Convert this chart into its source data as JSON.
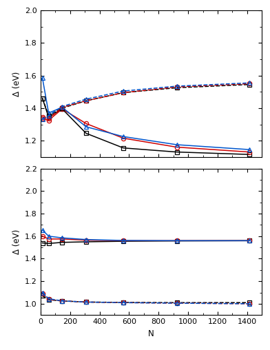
{
  "top_panel": {
    "ylim": [
      1.1,
      2.0
    ],
    "yticks": [
      1.2,
      1.4,
      1.6,
      1.8,
      2.0
    ],
    "N_values": [
      13,
      55,
      147,
      309,
      561,
      923,
      1415
    ],
    "Pd_Ih_solid": [
      1.46,
      1.345,
      1.395,
      1.245,
      1.155,
      1.13,
      1.115
    ],
    "Pd_IDh_solid": [
      1.335,
      1.325,
      1.395,
      1.305,
      1.215,
      1.16,
      1.13
    ],
    "Pd_CO_solid": [
      1.585,
      1.37,
      1.405,
      1.285,
      1.225,
      1.175,
      1.145
    ],
    "Au_Ih_dashed": [
      1.46,
      1.355,
      1.4,
      1.445,
      1.495,
      1.525,
      1.545
    ],
    "Au_IDh_dashed": [
      1.345,
      1.335,
      1.405,
      1.445,
      1.495,
      1.53,
      1.55
    ],
    "Au_CO_dashed": [
      1.33,
      1.355,
      1.41,
      1.455,
      1.505,
      1.535,
      1.555
    ]
  },
  "bottom_panel": {
    "ylim": [
      0.9,
      2.2
    ],
    "yticks": [
      1.0,
      1.2,
      1.4,
      1.6,
      1.8,
      2.0,
      2.2
    ],
    "N_values": [
      13,
      55,
      147,
      309,
      561,
      923,
      1415
    ],
    "Pd_Ih_solid": [
      1.54,
      1.535,
      1.545,
      1.55,
      1.555,
      1.558,
      1.56
    ],
    "Pd_IDh_solid": [
      1.6,
      1.575,
      1.575,
      1.565,
      1.56,
      1.56,
      1.56
    ],
    "Pd_CO_solid": [
      1.655,
      1.6,
      1.585,
      1.57,
      1.562,
      1.56,
      1.56
    ],
    "Au_Ih_dashed": [
      1.07,
      1.035,
      1.025,
      1.015,
      1.012,
      1.01,
      1.01
    ],
    "Au_IDh_dashed": [
      1.09,
      1.04,
      1.025,
      1.015,
      1.01,
      1.005,
      1.0
    ],
    "Au_CO_dashed": [
      1.1,
      1.045,
      1.025,
      1.015,
      1.01,
      1.005,
      1.0
    ]
  },
  "colors": {
    "Ih": "#000000",
    "IDh": "#cc0000",
    "CO": "#0055cc"
  },
  "xlabel": "N",
  "ylabel": "Δ (eV)",
  "xlim": [
    0,
    1500
  ],
  "xticks": [
    0,
    200,
    400,
    600,
    800,
    1000,
    1200,
    1400
  ],
  "marker_Ih": "s",
  "marker_IDh": "o",
  "marker_CO": "^",
  "markersize": 4.5,
  "linewidth": 1.1
}
